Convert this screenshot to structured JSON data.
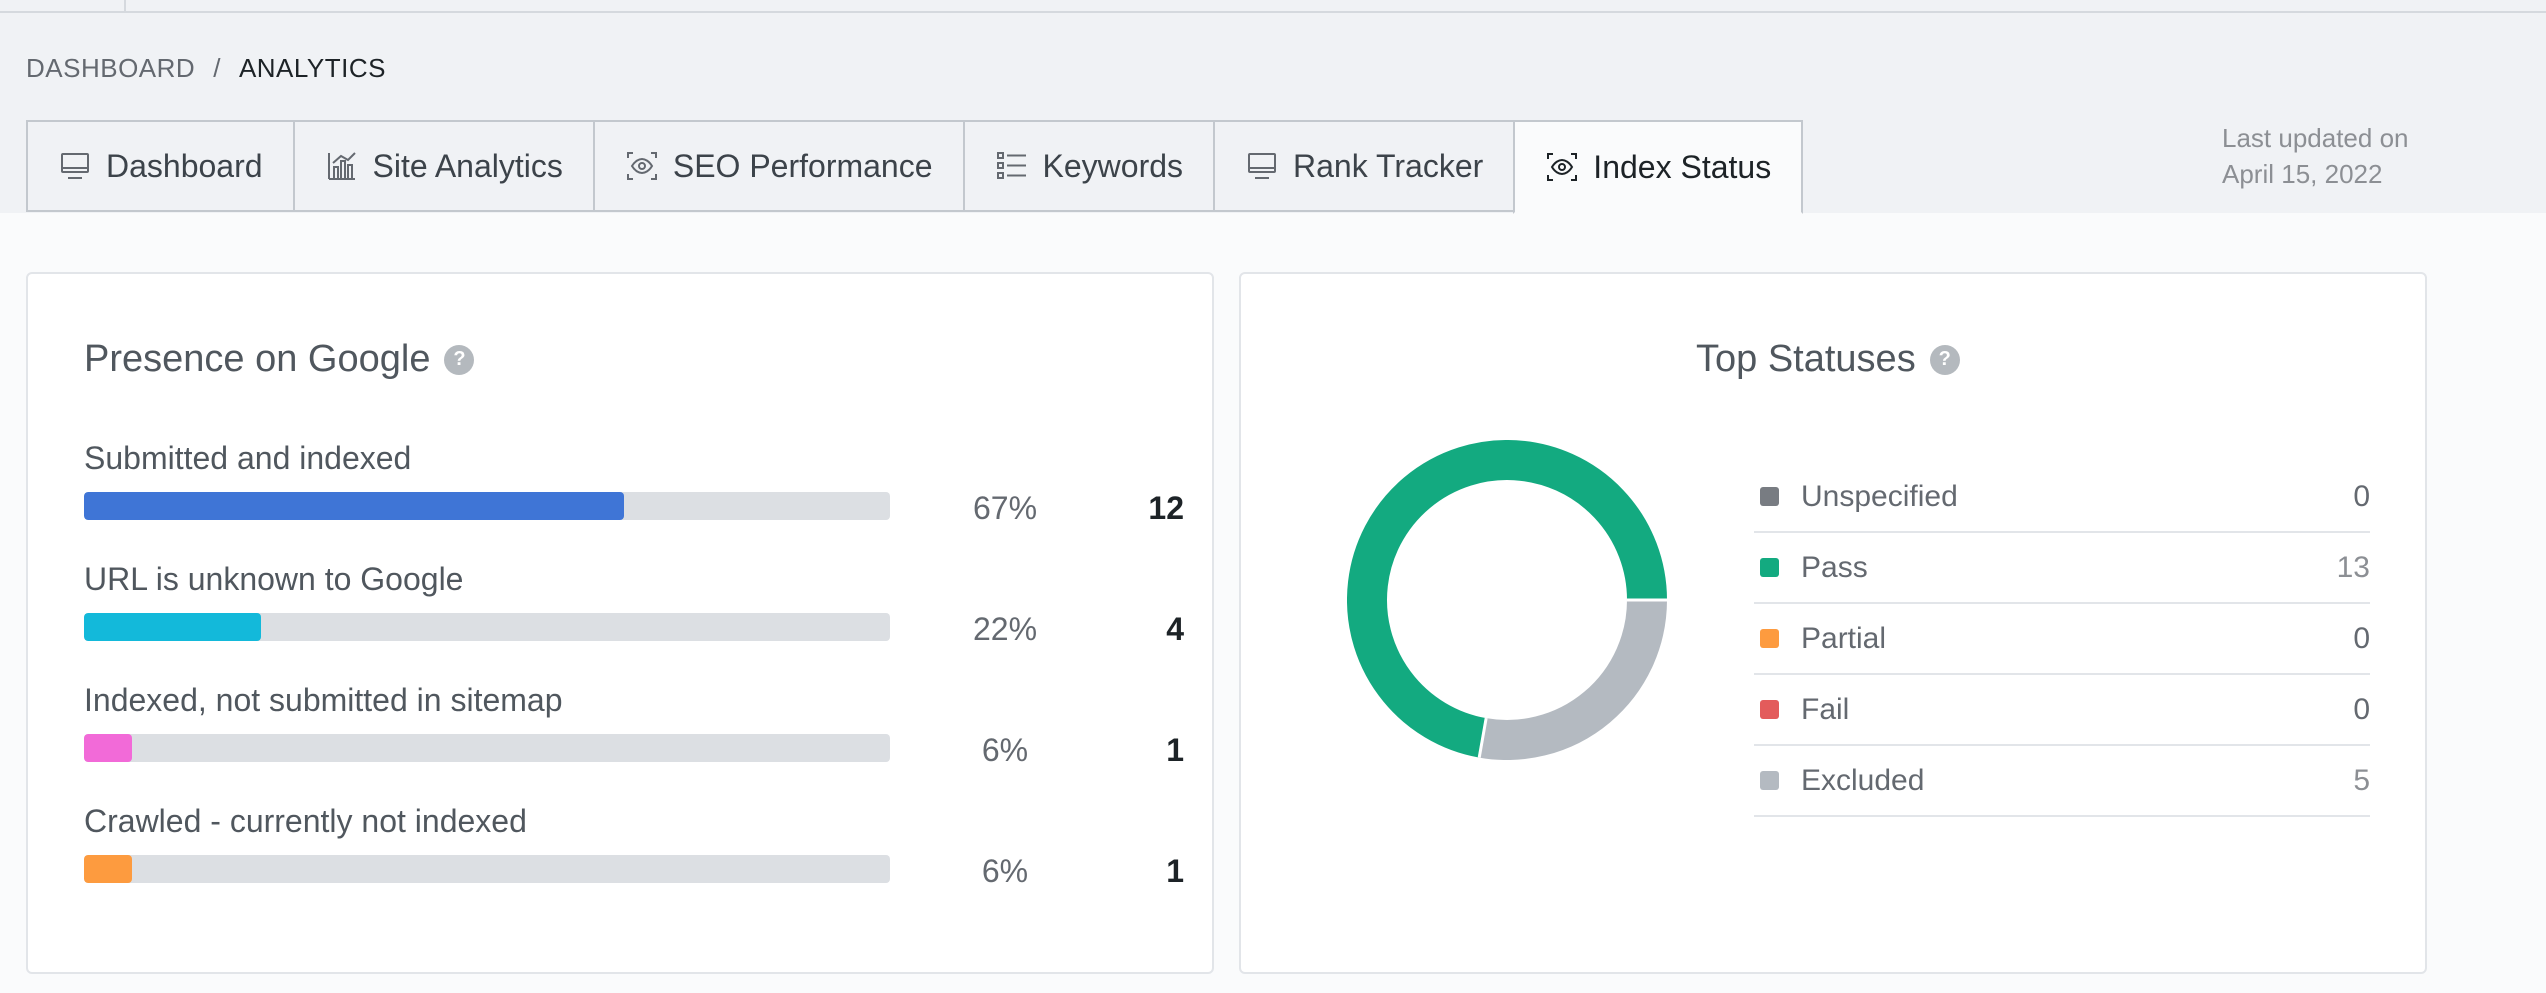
{
  "breadcrumb": {
    "parent": "DASHBOARD",
    "current": "ANALYTICS"
  },
  "tabs": [
    {
      "label": "Dashboard",
      "icon": "monitor-icon"
    },
    {
      "label": "Site Analytics",
      "icon": "bar-chart-icon"
    },
    {
      "label": "SEO Performance",
      "icon": "eye-scan-icon"
    },
    {
      "label": "Keywords",
      "icon": "list-icon"
    },
    {
      "label": "Rank Tracker",
      "icon": "monitor-icon"
    },
    {
      "label": "Index Status",
      "icon": "eye-scan-icon",
      "active": true
    }
  ],
  "last_updated": {
    "label": "Last updated on",
    "date": "April 15, 2022"
  },
  "presence": {
    "title": "Presence on Google",
    "rows": [
      {
        "label": "Submitted and indexed",
        "percent": "67%",
        "count": "12",
        "fraction": 0.67,
        "color": "#3f75d6"
      },
      {
        "label": "URL is unknown to Google",
        "percent": "22%",
        "count": "4",
        "fraction": 0.22,
        "color": "#13b9da"
      },
      {
        "label": "Indexed, not submitted in sitemap",
        "percent": "6%",
        "count": "1",
        "fraction": 0.06,
        "color": "#f26ad8"
      },
      {
        "label": "Crawled - currently not indexed",
        "percent": "6%",
        "count": "1",
        "fraction": 0.06,
        "color": "#fd9b3f"
      }
    ]
  },
  "top_statuses": {
    "title": "Top Statuses",
    "items": [
      {
        "label": "Unspecified",
        "value": "0",
        "color": "#787c82"
      },
      {
        "label": "Pass",
        "value": "13",
        "color": "#13aa80"
      },
      {
        "label": "Partial",
        "value": "0",
        "color": "#fd9b3f"
      },
      {
        "label": "Fail",
        "value": "0",
        "color": "#e35b5b"
      },
      {
        "label": "Excluded",
        "value": "5",
        "color": "#b4bac1"
      }
    ]
  },
  "chart_data": {
    "type": "pie",
    "categories": [
      "Unspecified",
      "Pass",
      "Partial",
      "Fail",
      "Excluded"
    ],
    "values": [
      0,
      13,
      0,
      0,
      5
    ]
  }
}
